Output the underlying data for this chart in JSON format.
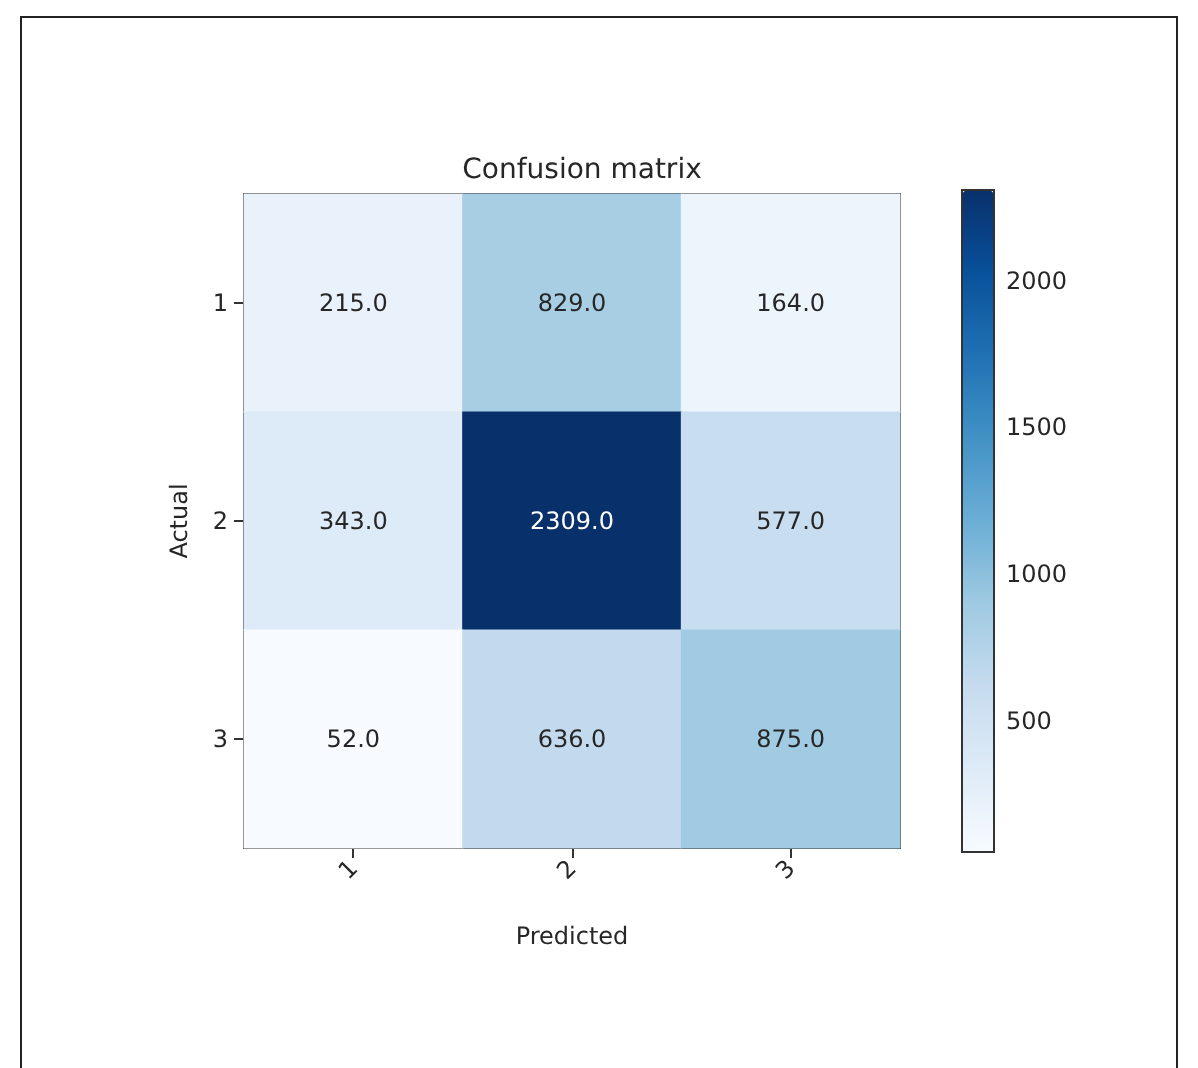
{
  "chart_data": {
    "type": "heatmap",
    "title": "Confusion matrix",
    "xlabel": "Predicted",
    "ylabel": "Actual",
    "categories": [
      "1",
      "2",
      "3"
    ],
    "y_categories": [
      "1",
      "2",
      "3"
    ],
    "cells": [
      [
        215,
        829,
        164
      ],
      [
        343,
        2309,
        577
      ],
      [
        52,
        636,
        875
      ]
    ],
    "cell_labels": [
      [
        "215.0",
        "829.0",
        "164.0"
      ],
      [
        "343.0",
        "2309.0",
        "577.0"
      ],
      [
        "52.0",
        "636.0",
        "875.0"
      ]
    ],
    "clim": [
      52,
      2309
    ],
    "cticks": [
      500,
      1000,
      1500,
      2000
    ]
  }
}
